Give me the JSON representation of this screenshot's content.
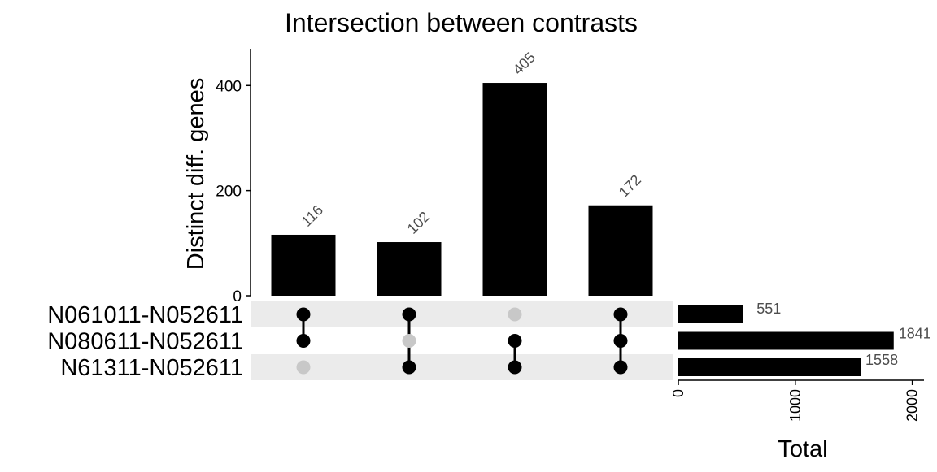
{
  "chart_data": {
    "type": "upset",
    "title": "Intersection between contrasts",
    "intersection_ylabel": "Distinct diff. genes",
    "set_size_xlabel": "Total",
    "sets": [
      "N061011-N052611",
      "N080611-N052611",
      "N61311-N052611"
    ],
    "intersections": [
      {
        "membership": [
          1,
          1,
          0
        ],
        "value": 116
      },
      {
        "membership": [
          1,
          0,
          1
        ],
        "value": 102
      },
      {
        "membership": [
          0,
          1,
          1
        ],
        "value": 405
      },
      {
        "membership": [
          1,
          1,
          1
        ],
        "value": 172
      }
    ],
    "intersection_yticks": [
      0,
      200,
      400
    ],
    "intersection_ylim": [
      0,
      470
    ],
    "set_sizes": [
      551,
      1841,
      1558
    ],
    "set_size_ticks": [
      0,
      1000,
      2000
    ],
    "set_size_xlim": [
      0,
      2100
    ],
    "colors": {
      "bar": "#000000",
      "dot_active": "#000000",
      "dot_inactive": "#c8c8c8",
      "stripe": "#ebebeb",
      "text": "#000000",
      "label": "#4d4d4d"
    }
  }
}
